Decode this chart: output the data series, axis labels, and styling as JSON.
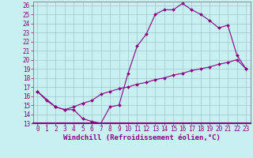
{
  "title": "",
  "xlabel": "Windchill (Refroidissement éolien,°C)",
  "background_color": "#c8f0f0",
  "grid_color": "#a0c8c8",
  "line_color": "#880088",
  "xlim": [
    -0.5,
    23.5
  ],
  "ylim": [
    13,
    26.4
  ],
  "xticks": [
    0,
    1,
    2,
    3,
    4,
    5,
    6,
    7,
    8,
    9,
    10,
    11,
    12,
    13,
    14,
    15,
    16,
    17,
    18,
    19,
    20,
    21,
    22,
    23
  ],
  "yticks": [
    13,
    14,
    15,
    16,
    17,
    18,
    19,
    20,
    21,
    22,
    23,
    24,
    25,
    26
  ],
  "line1_x": [
    0,
    1,
    2,
    3,
    4,
    5,
    6,
    7,
    8,
    9,
    10,
    11,
    12,
    13,
    14,
    15,
    16,
    17,
    18,
    19,
    20,
    21,
    22,
    23
  ],
  "line1_y": [
    16.5,
    15.5,
    14.8,
    14.5,
    14.5,
    13.5,
    13.2,
    13.0,
    14.8,
    15.0,
    18.5,
    21.5,
    22.8,
    25.0,
    25.5,
    25.5,
    26.2,
    25.5,
    25.0,
    24.3,
    23.5,
    23.8,
    20.5,
    19.0
  ],
  "line2_x": [
    0,
    2,
    3,
    4,
    5,
    6,
    7,
    8,
    9,
    10,
    11,
    12,
    13,
    14,
    15,
    16,
    17,
    18,
    19,
    20,
    21,
    22,
    23
  ],
  "line2_y": [
    16.5,
    14.8,
    14.5,
    14.8,
    15.2,
    15.5,
    16.2,
    16.5,
    16.8,
    17.0,
    17.3,
    17.5,
    17.8,
    18.0,
    18.3,
    18.5,
    18.8,
    19.0,
    19.2,
    19.5,
    19.7,
    20.0,
    19.0
  ],
  "marker_size": 2,
  "line_width": 0.8,
  "font_size": 5.5,
  "xlabel_fontsize": 6.5
}
